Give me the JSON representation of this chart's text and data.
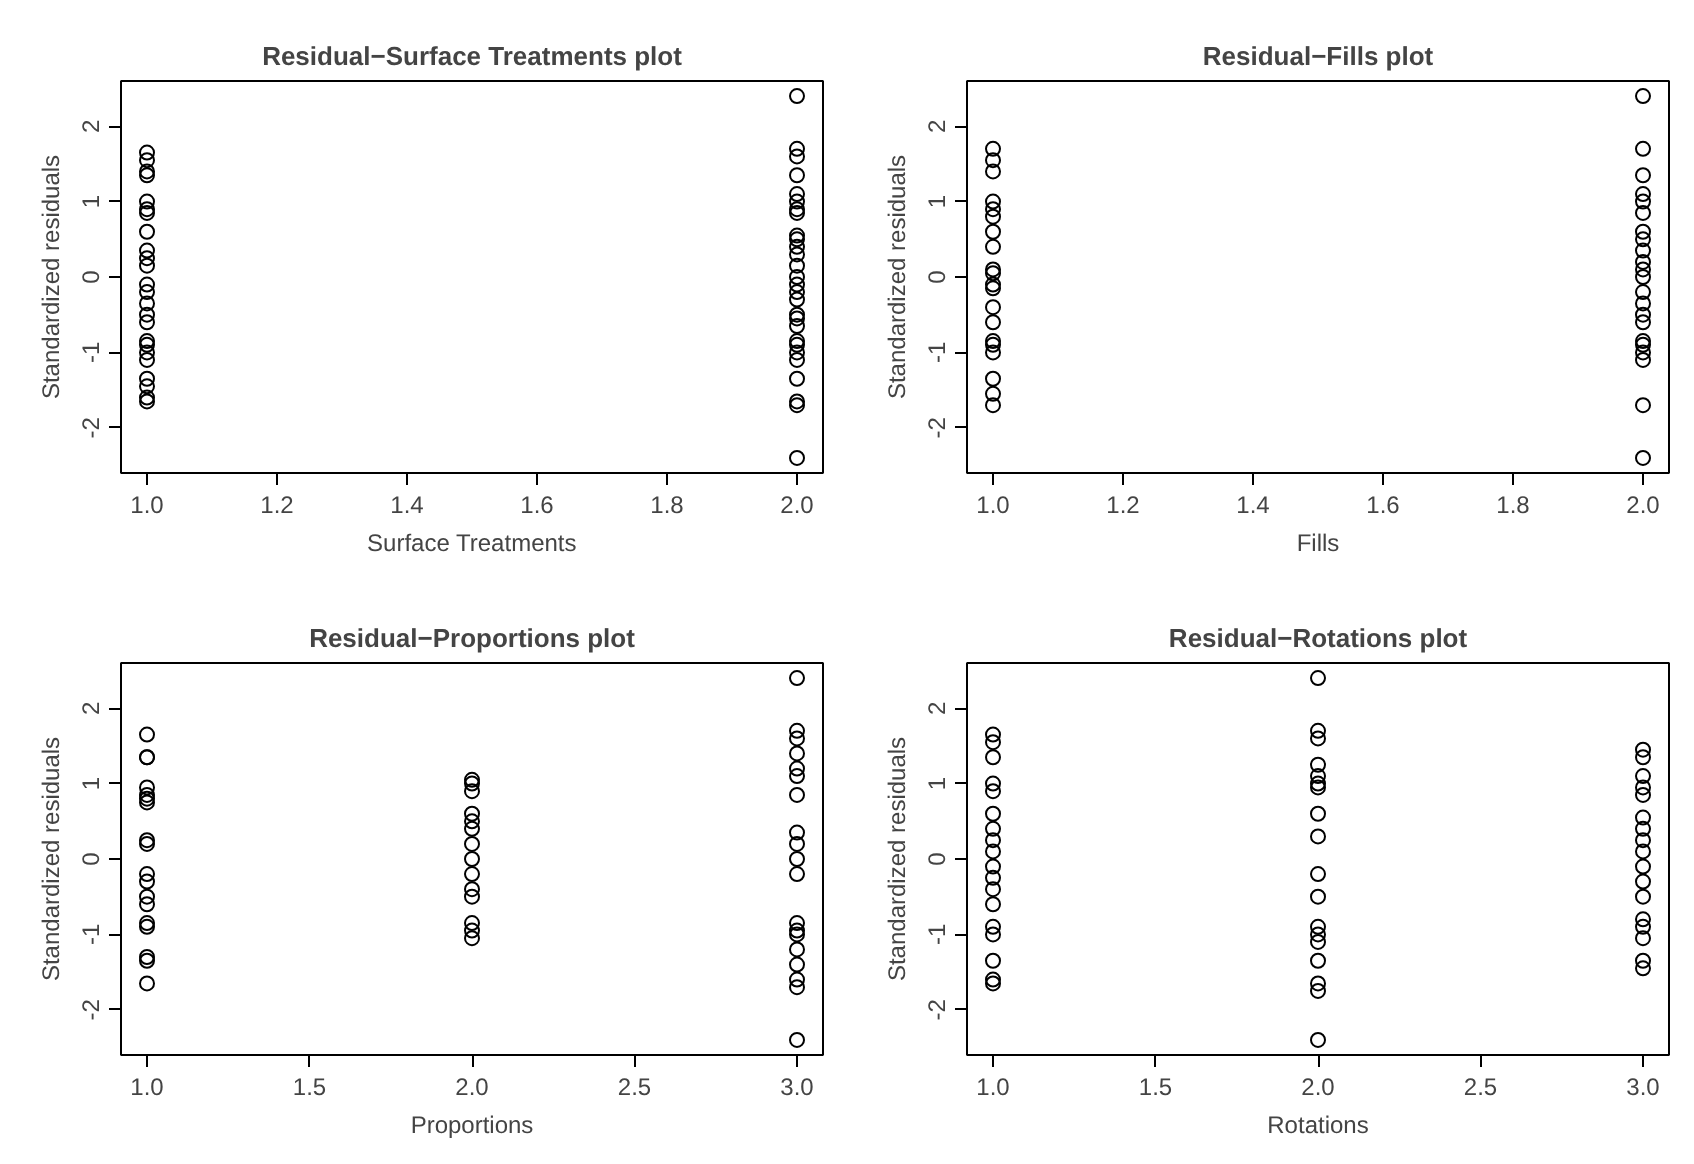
{
  "chart_data": [
    {
      "type": "scatter",
      "title": "Residual−Surface Treatments plot",
      "xlabel": "Surface Treatments",
      "ylabel": "Standardized residuals",
      "marker": "circle",
      "grid": false,
      "color": "#000000",
      "x": [
        1,
        1,
        1,
        1,
        1,
        1,
        1,
        1,
        1,
        1,
        1,
        1,
        1,
        1,
        1,
        1,
        1,
        1,
        1,
        1,
        1,
        1,
        1,
        1,
        2,
        2,
        2,
        2,
        2,
        2,
        2,
        2,
        2,
        2,
        2,
        2,
        2,
        2,
        2,
        2,
        2,
        2,
        2,
        2,
        2,
        2,
        2,
        2,
        2,
        2,
        2,
        2
      ],
      "values": [
        1.65,
        1.55,
        1.4,
        1.35,
        1.0,
        0.9,
        0.85,
        0.6,
        0.35,
        0.25,
        0.15,
        -0.1,
        -0.2,
        -0.35,
        -0.5,
        -0.6,
        -0.85,
        -0.9,
        -1.0,
        -1.1,
        -1.35,
        -1.45,
        -1.6,
        -1.65,
        2.4,
        1.7,
        1.6,
        1.35,
        1.1,
        1.0,
        0.9,
        0.85,
        0.55,
        0.5,
        0.4,
        0.3,
        0.15,
        0,
        -0.1,
        -0.2,
        -0.3,
        -0.5,
        -0.55,
        -0.65,
        -0.85,
        -0.9,
        -1.0,
        -1.1,
        -1.35,
        -1.65,
        -1.7,
        -2.4
      ],
      "xlim": [
        0.96,
        2.04
      ],
      "ylim": [
        -2.6,
        2.6
      ],
      "xticks": [
        {
          "value": 1,
          "label": "1.0"
        },
        1.2,
        1.4,
        1.6,
        1.8,
        {
          "value": 2,
          "label": "2.0"
        }
      ],
      "yticks": [
        -2,
        -1,
        0,
        1,
        2
      ]
    },
    {
      "type": "scatter",
      "title": "Residual−Fills plot",
      "xlabel": "Fills",
      "ylabel": "Standardized residuals",
      "marker": "circle",
      "grid": false,
      "color": "#000000",
      "x": [
        1,
        1,
        1,
        1,
        1,
        1,
        1,
        1,
        1,
        1,
        1,
        1,
        1,
        1,
        1,
        1,
        1,
        1,
        1,
        1,
        2,
        2,
        2,
        2,
        2,
        2,
        2,
        2,
        2,
        2,
        2,
        2,
        2,
        2,
        2,
        2,
        2,
        2,
        2,
        2,
        2,
        2
      ],
      "values": [
        1.7,
        1.55,
        1.4,
        1.0,
        0.9,
        0.8,
        0.6,
        0.4,
        0.1,
        0.05,
        -0.1,
        -0.15,
        -0.4,
        -0.6,
        -0.85,
        -0.9,
        -1.0,
        -1.35,
        -1.55,
        -1.7,
        2.4,
        1.7,
        1.35,
        1.1,
        1.0,
        0.85,
        0.6,
        0.5,
        0.35,
        0.2,
        0.1,
        0,
        -0.2,
        -0.35,
        -0.5,
        -0.6,
        -0.85,
        -0.9,
        -1.0,
        -1.1,
        -1.7,
        -2.4
      ],
      "xlim": [
        0.96,
        2.04
      ],
      "ylim": [
        -2.6,
        2.6
      ],
      "xticks": [
        {
          "value": 1,
          "label": "1.0"
        },
        1.2,
        1.4,
        1.6,
        1.8,
        {
          "value": 2,
          "label": "2.0"
        }
      ],
      "yticks": [
        -2,
        -1,
        0,
        1,
        2
      ]
    },
    {
      "type": "scatter",
      "title": "Residual−Proportions plot",
      "xlabel": "Proportions",
      "ylabel": "Standardized residuals",
      "marker": "circle",
      "grid": false,
      "color": "#000000",
      "x": [
        1,
        1,
        1,
        1,
        1,
        1,
        1,
        1,
        1,
        1,
        1,
        1,
        1,
        1,
        1,
        1,
        1,
        1,
        2,
        2,
        2,
        2,
        2,
        2,
        2,
        2,
        2,
        2,
        2,
        2,
        2,
        2,
        3,
        3,
        3,
        3,
        3,
        3,
        3,
        3,
        3,
        3,
        3,
        3,
        3,
        3,
        3,
        3,
        3,
        3,
        3
      ],
      "values": [
        1.65,
        1.35,
        1.35,
        0.95,
        0.85,
        0.8,
        0.75,
        0.25,
        0.2,
        -0.2,
        -0.3,
        -0.5,
        -0.6,
        -0.85,
        -0.9,
        -1.3,
        -1.35,
        -1.65,
        1.05,
        1.0,
        0.9,
        0.6,
        0.5,
        0.4,
        0.2,
        0,
        -0.2,
        -0.4,
        -0.5,
        -0.85,
        -0.95,
        -1.05,
        2.4,
        1.7,
        1.6,
        1.4,
        1.2,
        1.1,
        0.85,
        0.35,
        0.2,
        0,
        -0.2,
        -0.85,
        -0.95,
        -1.0,
        -1.2,
        -1.4,
        -1.6,
        -1.7,
        -2.4
      ],
      "xlim": [
        0.92,
        3.08
      ],
      "ylim": [
        -2.6,
        2.6
      ],
      "xticks": [
        {
          "value": 1,
          "label": "1.0"
        },
        1.5,
        {
          "value": 2,
          "label": "2.0"
        },
        2.5,
        {
          "value": 3,
          "label": "3.0"
        }
      ],
      "yticks": [
        -2,
        -1,
        0,
        1,
        2
      ]
    },
    {
      "type": "scatter",
      "title": "Residual−Rotations plot",
      "xlabel": "Rotations",
      "ylabel": "Standardized residuals",
      "marker": "circle",
      "grid": false,
      "color": "#000000",
      "x": [
        1,
        1,
        1,
        1,
        1,
        1,
        1,
        1,
        1,
        1,
        1,
        1,
        1,
        1,
        1,
        1,
        1,
        1,
        2,
        2,
        2,
        2,
        2,
        2,
        2,
        2,
        2,
        2,
        2,
        2,
        2,
        2,
        2,
        2,
        2,
        2,
        3,
        3,
        3,
        3,
        3,
        3,
        3,
        3,
        3,
        3,
        3,
        3,
        3,
        3,
        3,
        3,
        3
      ],
      "values": [
        1.65,
        1.55,
        1.35,
        1.0,
        0.9,
        0.6,
        0.4,
        0.25,
        0.1,
        -0.1,
        -0.25,
        -0.4,
        -0.6,
        -0.9,
        -1.0,
        -1.35,
        -1.6,
        -1.65,
        2.4,
        1.7,
        1.6,
        1.25,
        1.1,
        1.0,
        0.95,
        0.6,
        0.3,
        -0.2,
        -0.5,
        -0.9,
        -1.0,
        -1.1,
        -1.35,
        -1.65,
        -1.75,
        -2.4,
        1.45,
        1.35,
        1.1,
        0.95,
        0.85,
        0.55,
        0.4,
        0.25,
        0.1,
        -0.1,
        -0.3,
        -0.5,
        -0.8,
        -0.9,
        -1.05,
        -1.35,
        -1.45
      ],
      "xlim": [
        0.92,
        3.08
      ],
      "ylim": [
        -2.6,
        2.6
      ],
      "xticks": [
        {
          "value": 1,
          "label": "1.0"
        },
        1.5,
        {
          "value": 2,
          "label": "2.0"
        },
        2.5,
        {
          "value": 3,
          "label": "3.0"
        }
      ],
      "yticks": [
        -2,
        -1,
        0,
        1,
        2
      ]
    }
  ]
}
